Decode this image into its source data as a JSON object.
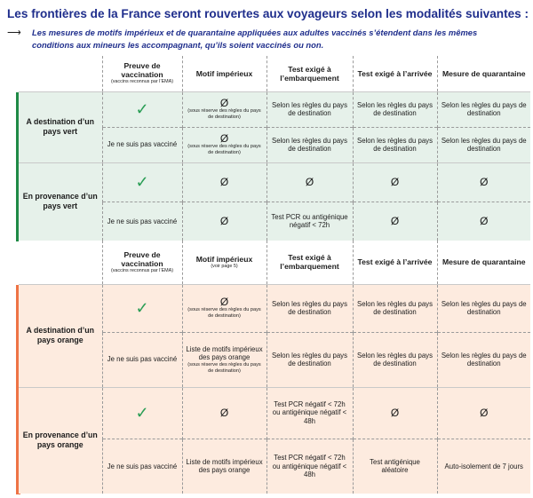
{
  "title": "Les frontières de la France seront rouvertes aux voyageurs selon les modalités suivantes :",
  "subtitle": {
    "arrow": "⟶",
    "line1": "Les mesures de motifs impérieux et de quarantaine appliquées aux adultes vaccinés s’étendent dans les mêmes",
    "line2": "conditions aux mineurs les accompagnant, qu’ils soient vaccinés ou non."
  },
  "headers": {
    "proof": "Preuve de vaccination",
    "proof_note": "(vaccins reconnus par l’EMA)",
    "motif": "Motif impérieux",
    "motif_note2": "(voir page 5)",
    "test_boarding": "Test exigé à l’embarquement",
    "test_arrival": "Test exigé à l’arrivée",
    "quarantine": "Mesure de quarantaine"
  },
  "symbols": {
    "check": "✓",
    "empty": "Ø"
  },
  "green_block": {
    "to_label": "A destination d’un pays vert",
    "from_label": "En provenance d’un pays vert",
    "not_vaccinated": "Je ne suis pas vacciné",
    "reserve_note": "(sous réserve des règles du pays de destination)",
    "rules": "Selon les règles du pays de destination",
    "pcr": "Test PCR ou antigénique négatif < 72h"
  },
  "orange_block": {
    "to_label": "A destination d’un pays orange",
    "from_label": "En provenance d’un pays orange",
    "not_vaccinated": "Je ne suis pas vacciné",
    "reserve_note": "(sous réserve des règles du pays de destination)",
    "motif_list": "Liste de motifs impérieux des pays orange",
    "motif_list_note": "(sous réserve des règles du pays de destination)",
    "motif_list_plain": "Liste de motifs impérieux des pays orange",
    "rules": "Selon les règles du pays de destination",
    "pcr_vacc": "Test PCR négatif < 72h ou antigénique négatif < 48h",
    "antigen_arrival": "Test antigénique aléatoire",
    "isolation": "Auto-isolement de 7 jours"
  },
  "colors": {
    "title": "#1f2e8c",
    "green_bar": "#1f8a46",
    "green_bg": "#e6f1ea",
    "orange_bar": "#ee7345",
    "orange_bg": "#fdebdf",
    "check": "#2a9d55"
  }
}
